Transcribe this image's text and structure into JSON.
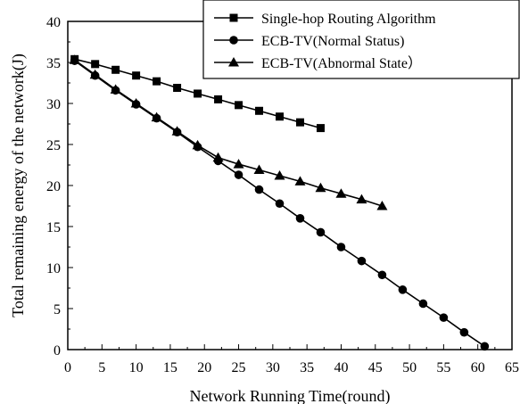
{
  "chart_data": {
    "type": "line",
    "xlabel": "Network Running Time(round)",
    "ylabel": "Total remaining energy of the network(J)",
    "xlim": [
      0,
      65
    ],
    "ylim": [
      0,
      40
    ],
    "xticks": [
      0,
      5,
      10,
      15,
      20,
      25,
      30,
      35,
      40,
      45,
      50,
      55,
      60,
      65
    ],
    "yticks": [
      0,
      5,
      10,
      15,
      20,
      25,
      30,
      35,
      40
    ],
    "grid": false,
    "legend_position": "top-right",
    "series": [
      {
        "name": "Single-hop Routing Algorithm",
        "marker": "square",
        "x": [
          1,
          4,
          7,
          10,
          13,
          16,
          19,
          22,
          25,
          28,
          31,
          34,
          37
        ],
        "y": [
          35.4,
          34.8,
          34.1,
          33.4,
          32.7,
          31.9,
          31.2,
          30.5,
          29.8,
          29.1,
          28.4,
          27.7,
          27.0
        ]
      },
      {
        "name": "ECB-TV(Normal Status)",
        "marker": "circle",
        "x": [
          1,
          4,
          7,
          10,
          13,
          16,
          19,
          22,
          25,
          28,
          31,
          34,
          37,
          40,
          43,
          46,
          49,
          52,
          55,
          58,
          61
        ],
        "y": [
          35.2,
          33.4,
          31.6,
          29.9,
          28.2,
          26.5,
          24.7,
          23.0,
          21.3,
          19.5,
          17.8,
          16.0,
          14.3,
          12.5,
          10.8,
          9.1,
          7.3,
          5.6,
          3.9,
          2.1,
          0.4
        ]
      },
      {
        "name": "ECB-TV(Abnormal State）",
        "marker": "triangle",
        "x": [
          1,
          4,
          7,
          10,
          13,
          16,
          19,
          22,
          25,
          28,
          31,
          34,
          37,
          40,
          43,
          46
        ],
        "y": [
          35.3,
          33.5,
          31.7,
          30.0,
          28.3,
          26.6,
          24.9,
          23.4,
          22.6,
          21.9,
          21.2,
          20.5,
          19.7,
          19.0,
          18.3,
          17.5
        ]
      }
    ]
  }
}
